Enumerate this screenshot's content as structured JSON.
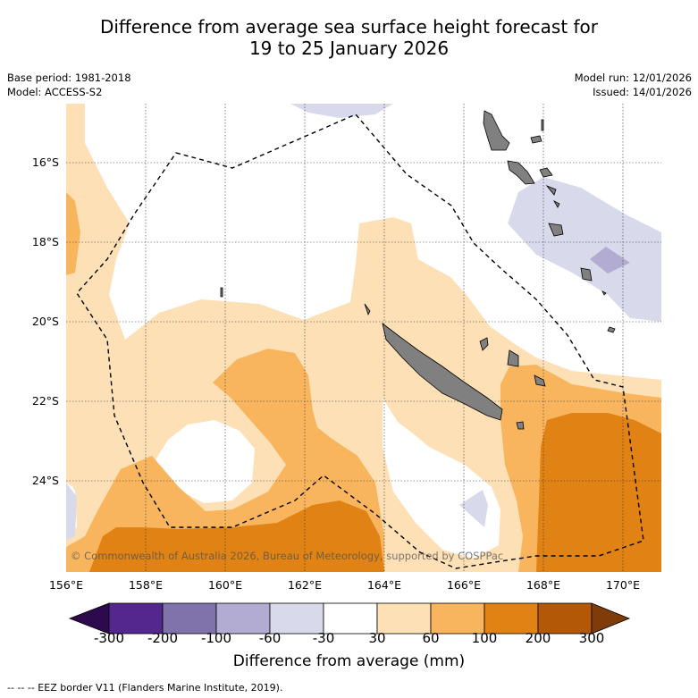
{
  "title_line1": "Difference from average sea surface height forecast for",
  "title_line2": "19 to 25 January 2026",
  "meta": {
    "base_period": "Base period: 1981-2018",
    "model": "Model: ACCESS-S2",
    "model_run": "Model run: 12/01/2026",
    "issued": "Issued: 14/01/2026"
  },
  "lat_labels": [
    "16°S",
    "18°S",
    "20°S",
    "22°S",
    "24°S"
  ],
  "lon_labels": [
    "156°E",
    "158°E",
    "160°E",
    "162°E",
    "164°E",
    "166°E",
    "168°E",
    "170°E"
  ],
  "copyright": "© Commonwealth of Australia 2026, Bureau of Meteorology, supported by COSPPac",
  "colorbar": {
    "ticks": [
      "-300",
      "-200",
      "-100",
      "-60",
      "-30",
      "30",
      "60",
      "100",
      "200",
      "300"
    ],
    "label": "Difference from average (mm)",
    "colors": {
      "below_-300": "#2d0a4e",
      "-300_-200": "#54278f",
      "-200_-100": "#8073ac",
      "-100_-60": "#b2abd2",
      "-60_-30": "#d8daeb",
      "-30_30": "#ffffff",
      "30_60": "#fee0b6",
      "60_100": "#f8b55e",
      "100_200": "#e08214",
      "200_300": "#b35806",
      "above_300": "#7f3b08"
    }
  },
  "footnote": "-- -- -- EEZ border V11 (Flanders Marine Institute, 2019)."
}
